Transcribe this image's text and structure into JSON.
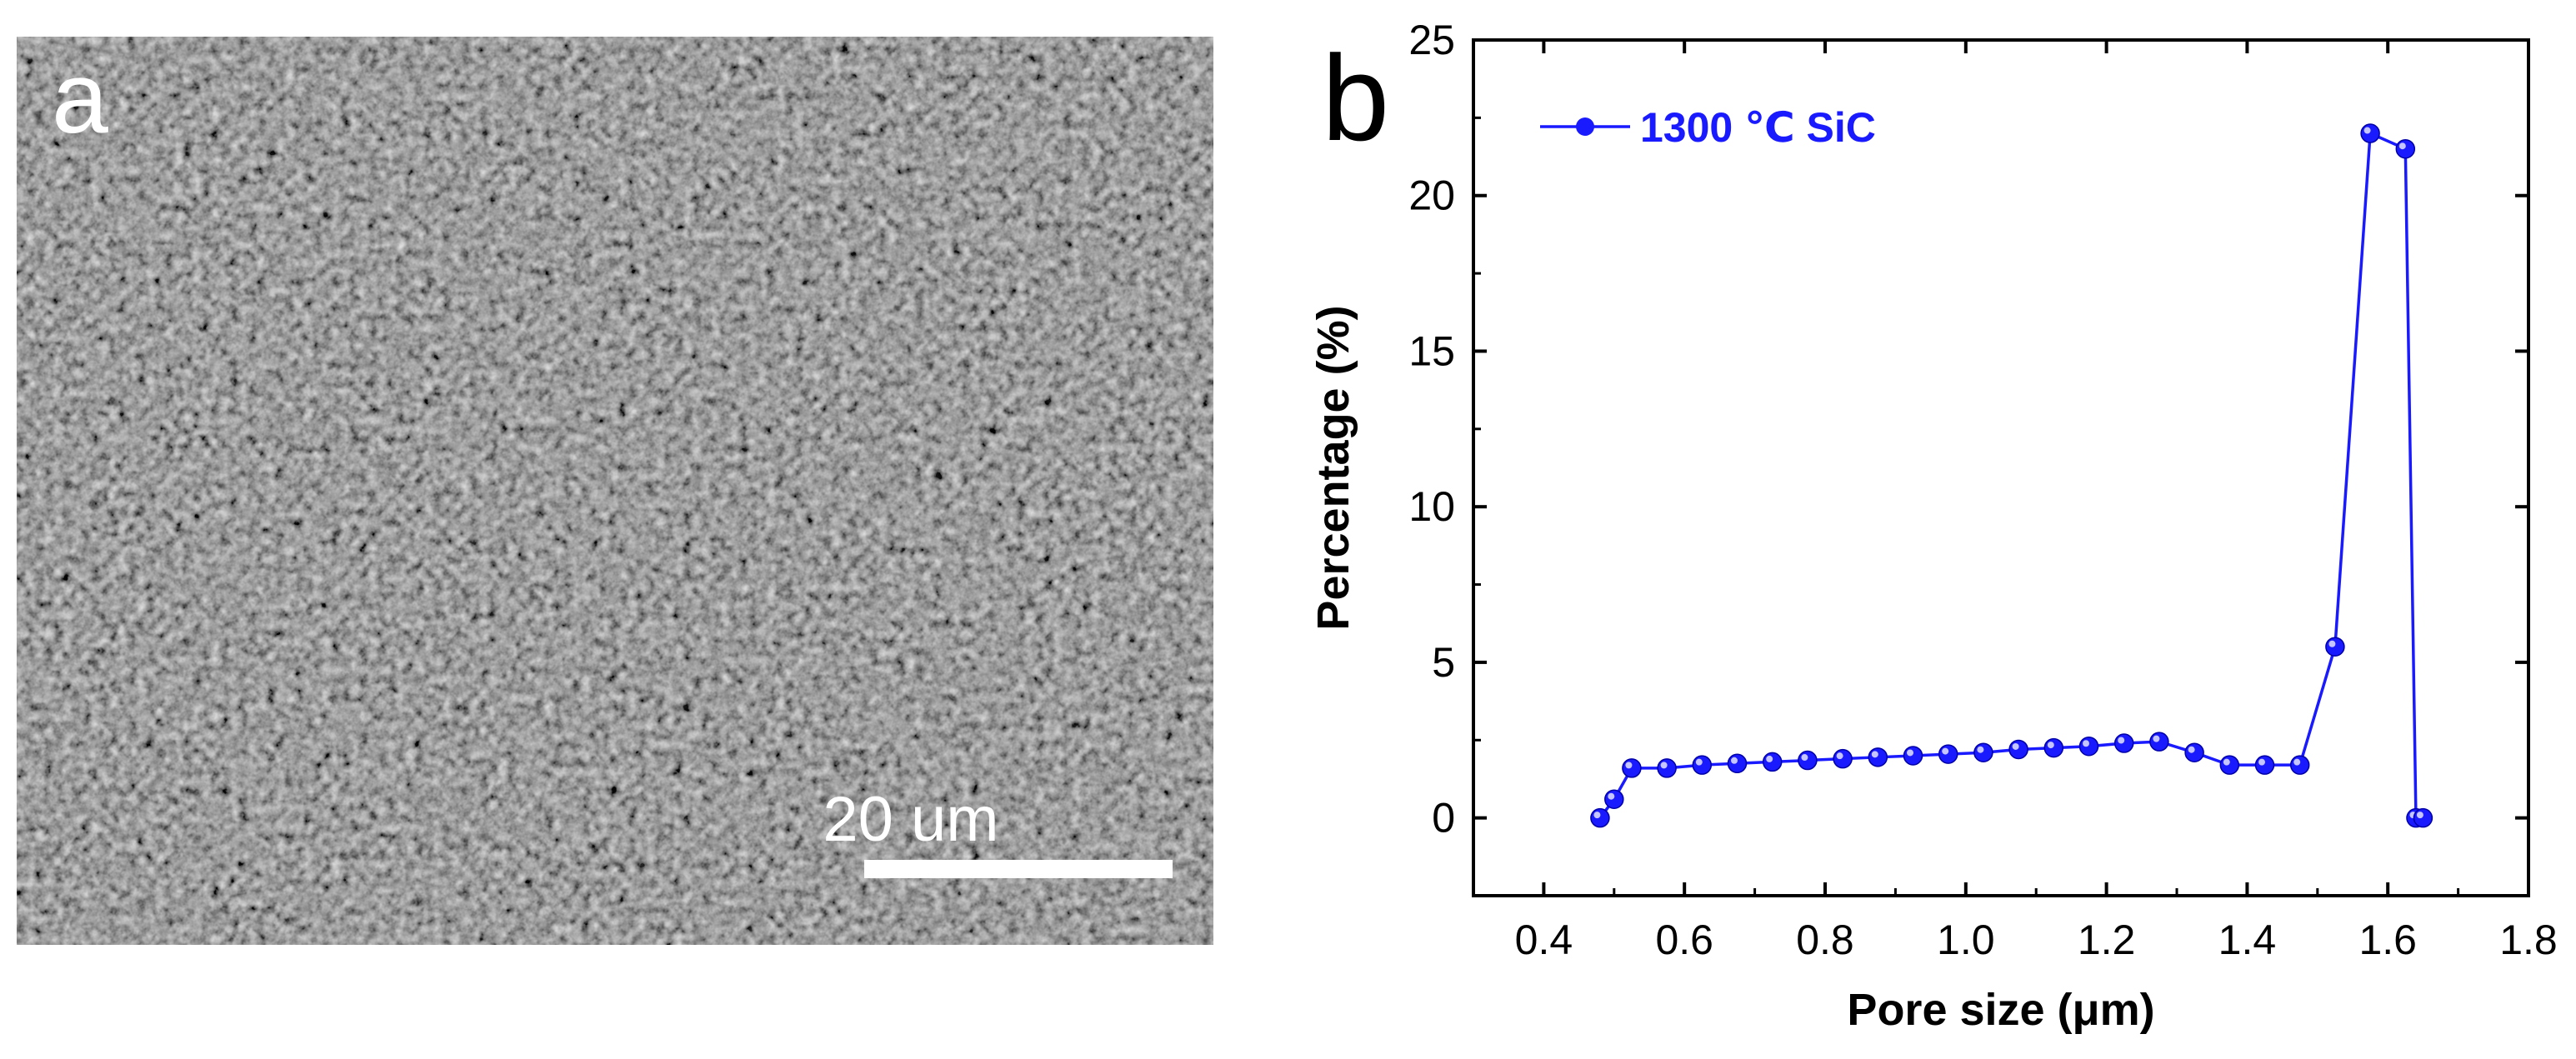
{
  "panel_a": {
    "label": "a",
    "scale_bar_text": "20 um",
    "description_colors": {
      "base": "#5a5a5a",
      "light": "#9a9a9a",
      "dark": "#2e2e2e"
    }
  },
  "panel_b": {
    "label": "b"
  },
  "chart_data": {
    "type": "line",
    "title": "",
    "xlabel": "Pore size (μm)",
    "ylabel": "Percentage (%)",
    "xlim": [
      0.3,
      1.8
    ],
    "ylim": [
      -2.5,
      25
    ],
    "xticks": [
      0.4,
      0.6,
      0.8,
      1.0,
      1.2,
      1.4,
      1.6,
      1.8
    ],
    "xtick_labels": [
      "0.4",
      "0.6",
      "0.8",
      "1.0",
      "1.2",
      "1.4",
      "1.6",
      "1.8"
    ],
    "yticks": [
      0,
      5,
      10,
      15,
      20,
      25
    ],
    "ytick_labels": [
      "0",
      "5",
      "10",
      "15",
      "20",
      "25"
    ],
    "legend": {
      "position": "top-left"
    },
    "series": [
      {
        "name": "1300 ℃ SiC",
        "color": "#1a1aff",
        "marker": "circle",
        "x": [
          0.48,
          0.5,
          0.525,
          0.575,
          0.625,
          0.675,
          0.725,
          0.775,
          0.825,
          0.875,
          0.925,
          0.975,
          1.025,
          1.075,
          1.125,
          1.175,
          1.225,
          1.275,
          1.325,
          1.375,
          1.425,
          1.475,
          1.525,
          1.575,
          1.625,
          1.64,
          1.65
        ],
        "y": [
          0,
          0.6,
          1.6,
          1.6,
          1.7,
          1.75,
          1.8,
          1.85,
          1.9,
          1.95,
          2.0,
          2.05,
          2.1,
          2.2,
          2.25,
          2.3,
          2.4,
          2.45,
          2.1,
          1.7,
          1.7,
          1.7,
          5.5,
          22.0,
          21.5,
          0,
          0
        ]
      }
    ]
  }
}
